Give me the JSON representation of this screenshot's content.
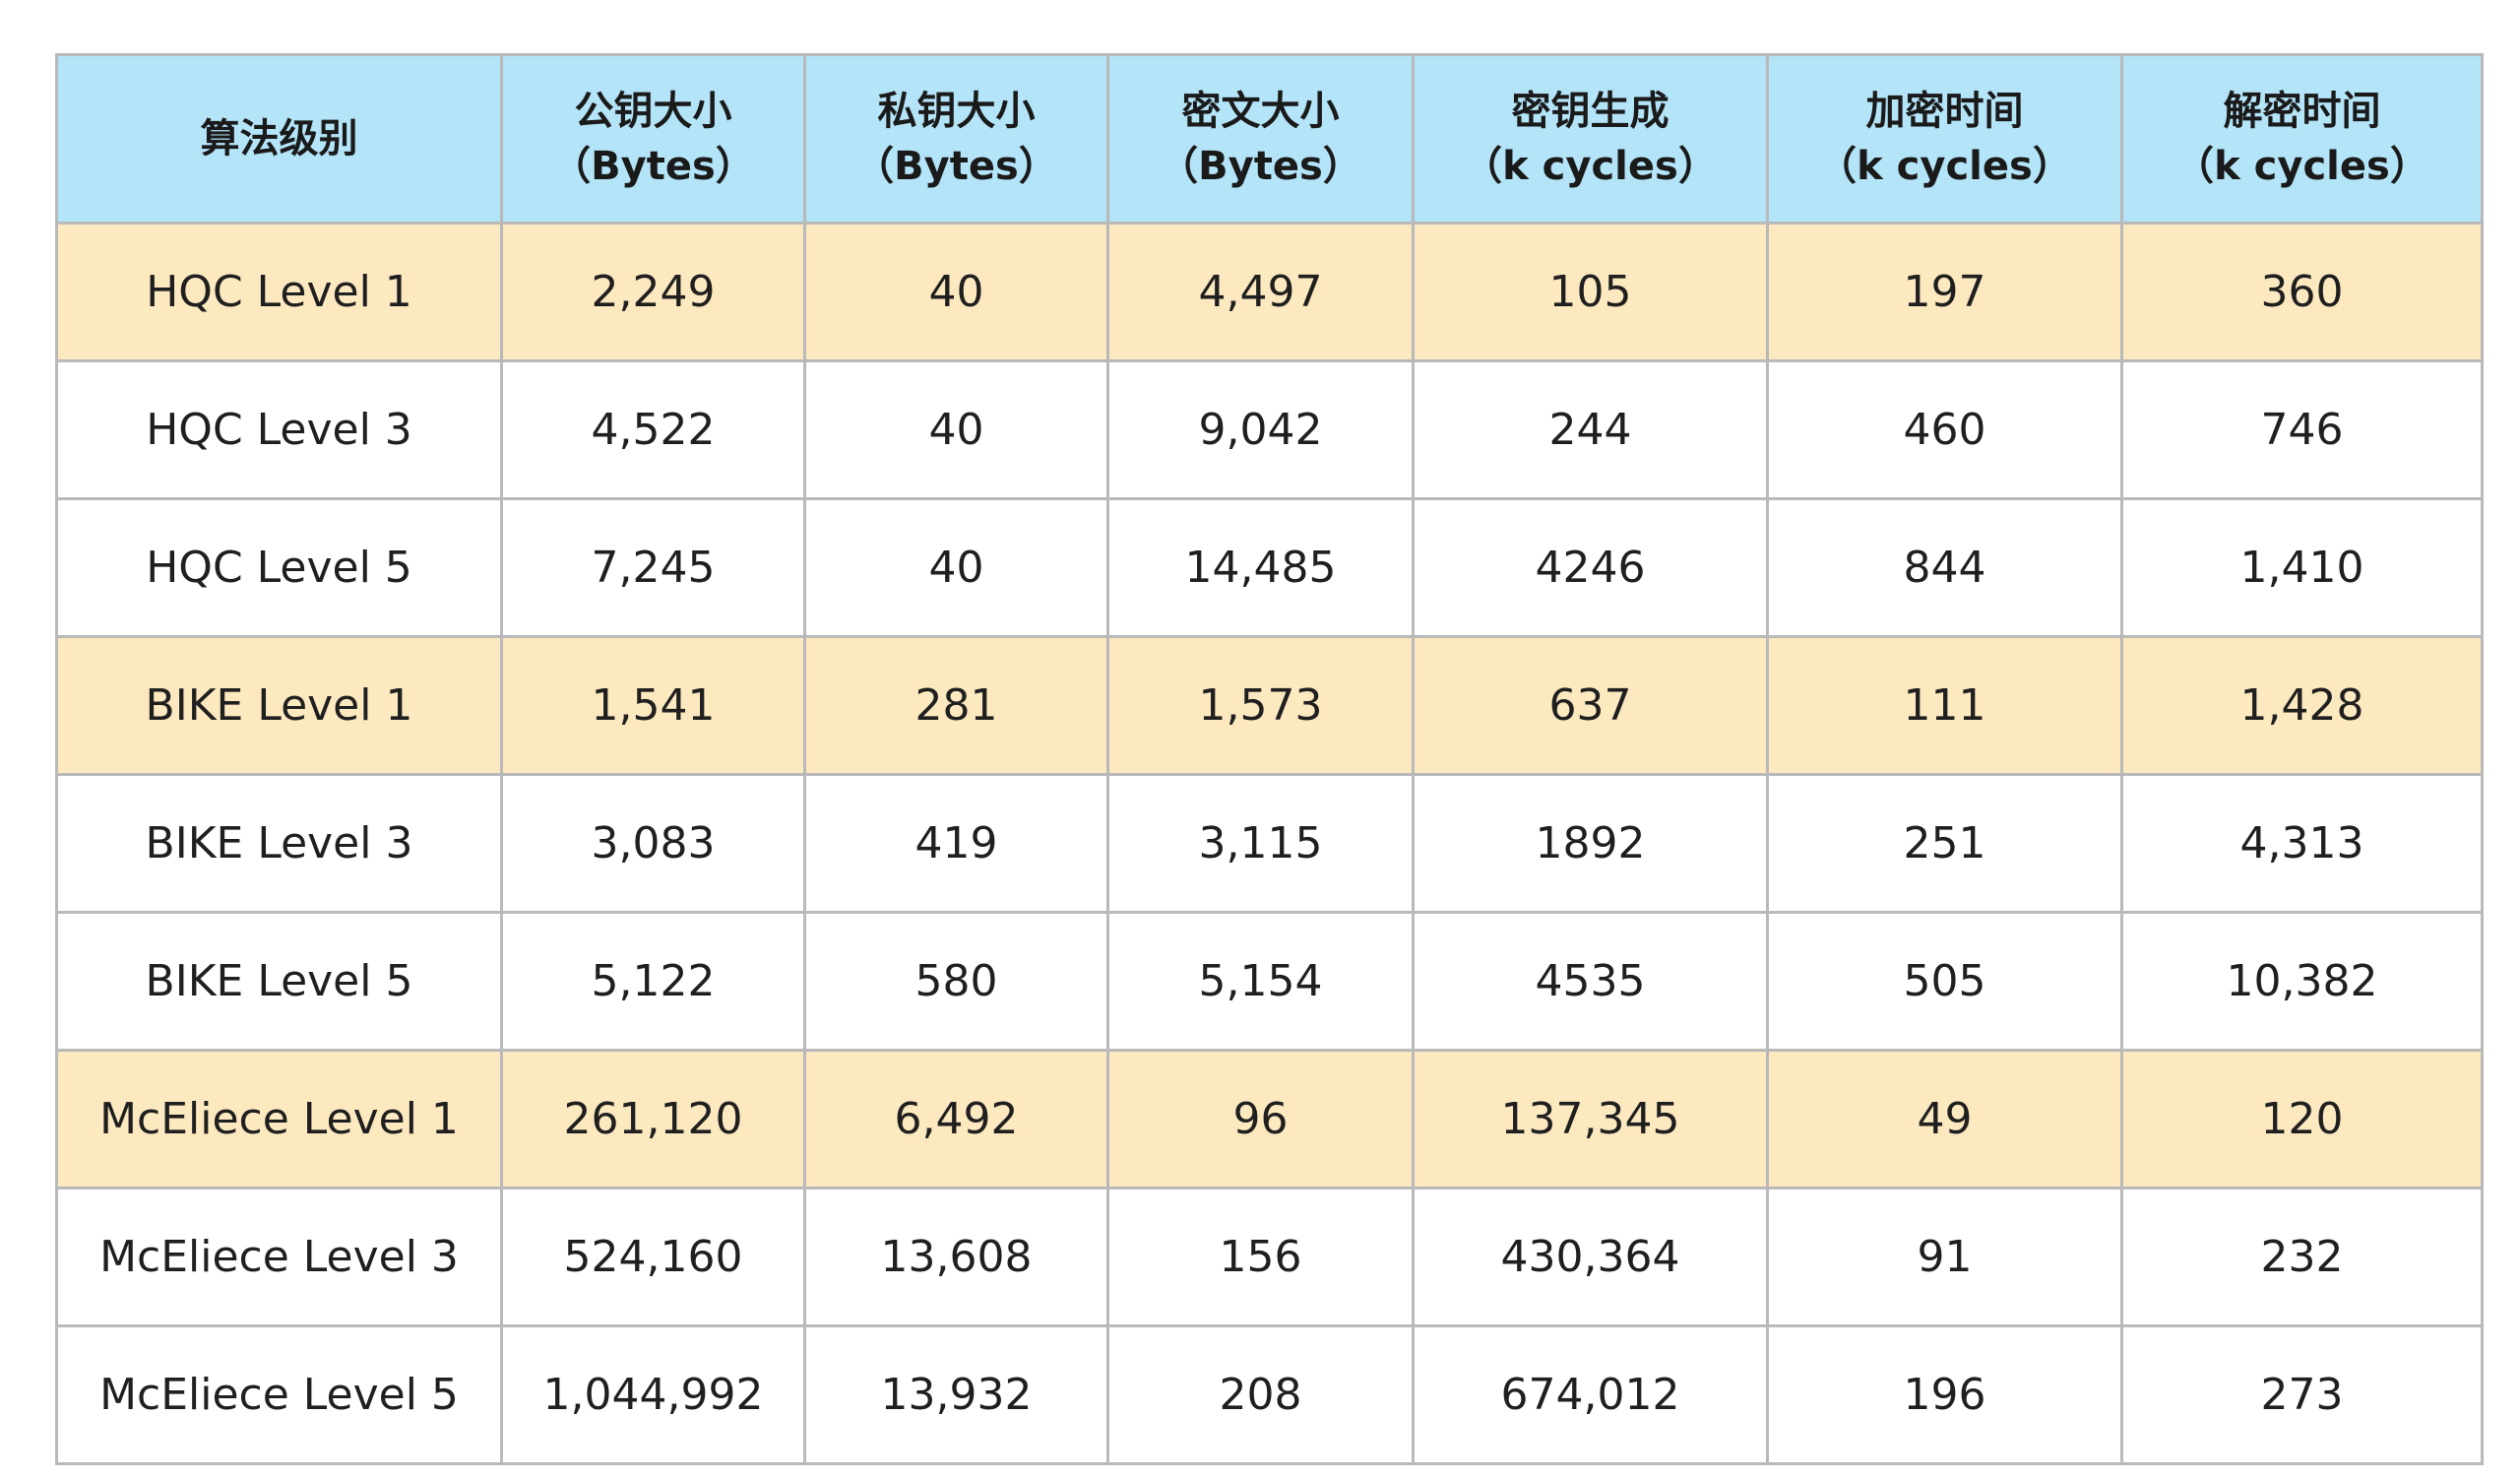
{
  "table": {
    "headers": [
      {
        "line1": "算法级别",
        "line2": ""
      },
      {
        "line1": "公钥大小",
        "line2": "（Bytes）"
      },
      {
        "line1": "私钥大小",
        "line2": "（Bytes）"
      },
      {
        "line1": "密文大小",
        "line2": "（Bytes）"
      },
      {
        "line1": "密钥生成",
        "line2": "（k cycles）"
      },
      {
        "line1": "加密时间",
        "line2": "（k cycles）"
      },
      {
        "line1": "解密时间",
        "line2": "（k cycles）"
      }
    ],
    "rows": [
      [
        "HQC Level 1",
        "2,249",
        "40",
        "4,497",
        "105",
        "197",
        "360"
      ],
      [
        "HQC Level 3",
        "4,522",
        "40",
        "9,042",
        "244",
        "460",
        "746"
      ],
      [
        "HQC Level 5",
        "7,245",
        "40",
        "14,485",
        "4246",
        "844",
        "1,410"
      ],
      [
        "BIKE Level 1",
        "1,541",
        "281",
        "1,573",
        "637",
        "111",
        "1,428"
      ],
      [
        "BIKE Level 3",
        "3,083",
        "419",
        "3,115",
        "1892",
        "251",
        "4,313"
      ],
      [
        "BIKE Level 5",
        "5,122",
        "580",
        "5,154",
        "4535",
        "505",
        "10,382"
      ],
      [
        "McEliece Level 1",
        "261,120",
        "6,492",
        "96",
        "137,345",
        "49",
        "120"
      ],
      [
        "McEliece Level 3",
        "524,160",
        "13,608",
        "156",
        "430,364",
        "91",
        "232"
      ],
      [
        "McEliece Level 5",
        "1,044,992",
        "13,932",
        "208",
        "674,012",
        "196",
        "273"
      ]
    ],
    "highlighted_rows": [
      0,
      3,
      6
    ]
  },
  "colors": {
    "header_bg": "#b3e4f8",
    "highlight_bg": "#fde9c0",
    "border": "#b9b9b9"
  }
}
